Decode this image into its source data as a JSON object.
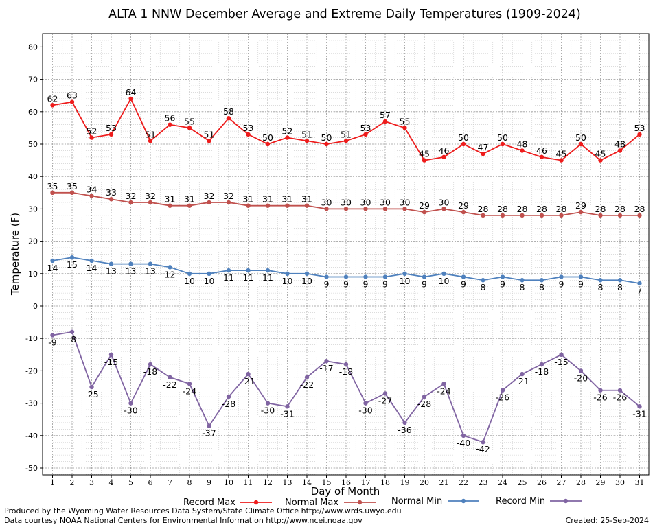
{
  "chart_data": {
    "type": "line",
    "title": "ALTA 1 NNW December Average and Extreme Daily Temperatures (1909-2024)",
    "xlabel": "Day of Month",
    "ylabel": "Temperature (F)",
    "ylim": [
      -52,
      84
    ],
    "yticks": [
      -50,
      -40,
      -30,
      -20,
      -10,
      0,
      10,
      20,
      30,
      40,
      50,
      60,
      70,
      80
    ],
    "x": [
      1,
      2,
      3,
      4,
      5,
      6,
      7,
      8,
      9,
      10,
      11,
      12,
      13,
      14,
      15,
      16,
      17,
      18,
      19,
      20,
      21,
      22,
      23,
      24,
      25,
      26,
      27,
      28,
      29,
      30,
      31
    ],
    "grid": true,
    "legend_position": "bottom",
    "series": [
      {
        "name": "Record Max",
        "color": "#ee1c1c",
        "label_pos": "above",
        "values": [
          62,
          63,
          52,
          53,
          64,
          51,
          56,
          55,
          51,
          58,
          53,
          50,
          52,
          51,
          50,
          51,
          53,
          57,
          55,
          45,
          46,
          50,
          47,
          50,
          48,
          46,
          45,
          50,
          45,
          48,
          53
        ]
      },
      {
        "name": "Normal Max",
        "color": "#c0504d",
        "label_pos": "above",
        "values": [
          35,
          35,
          34,
          33,
          32,
          32,
          31,
          31,
          32,
          32,
          31,
          31,
          31,
          31,
          30,
          30,
          30,
          30,
          30,
          29,
          30,
          29,
          28,
          28,
          28,
          28,
          28,
          29,
          28,
          28,
          28
        ]
      },
      {
        "name": "Normal Min",
        "color": "#4f81bd",
        "label_pos": "below",
        "values": [
          14,
          15,
          14,
          13,
          13,
          13,
          12,
          10,
          10,
          11,
          11,
          11,
          10,
          10,
          9,
          9,
          9,
          9,
          10,
          9,
          10,
          9,
          8,
          9,
          8,
          8,
          9,
          9,
          8,
          8,
          7
        ]
      },
      {
        "name": "Record Min",
        "color": "#8064a2",
        "label_pos": "below",
        "values": [
          -9,
          -8,
          -25,
          -15,
          -30,
          -18,
          -22,
          -24,
          -37,
          -28,
          -21,
          -30,
          -31,
          -22,
          -17,
          -18,
          -30,
          -27,
          -36,
          -28,
          -24,
          -40,
          -42,
          -26,
          -21,
          -18,
          -15,
          -20,
          -26,
          -26,
          -31
        ]
      }
    ]
  },
  "credits": {
    "produced_by": "Produced by the Wyoming Water Resources Data System/State Climate Office http://www.wrds.uwyo.edu",
    "data_courtesy": "Data courtesy NOAA National Centers for Environmental Information http://www.ncei.noaa.gov",
    "created": "Created:  25-Sep-2024"
  }
}
